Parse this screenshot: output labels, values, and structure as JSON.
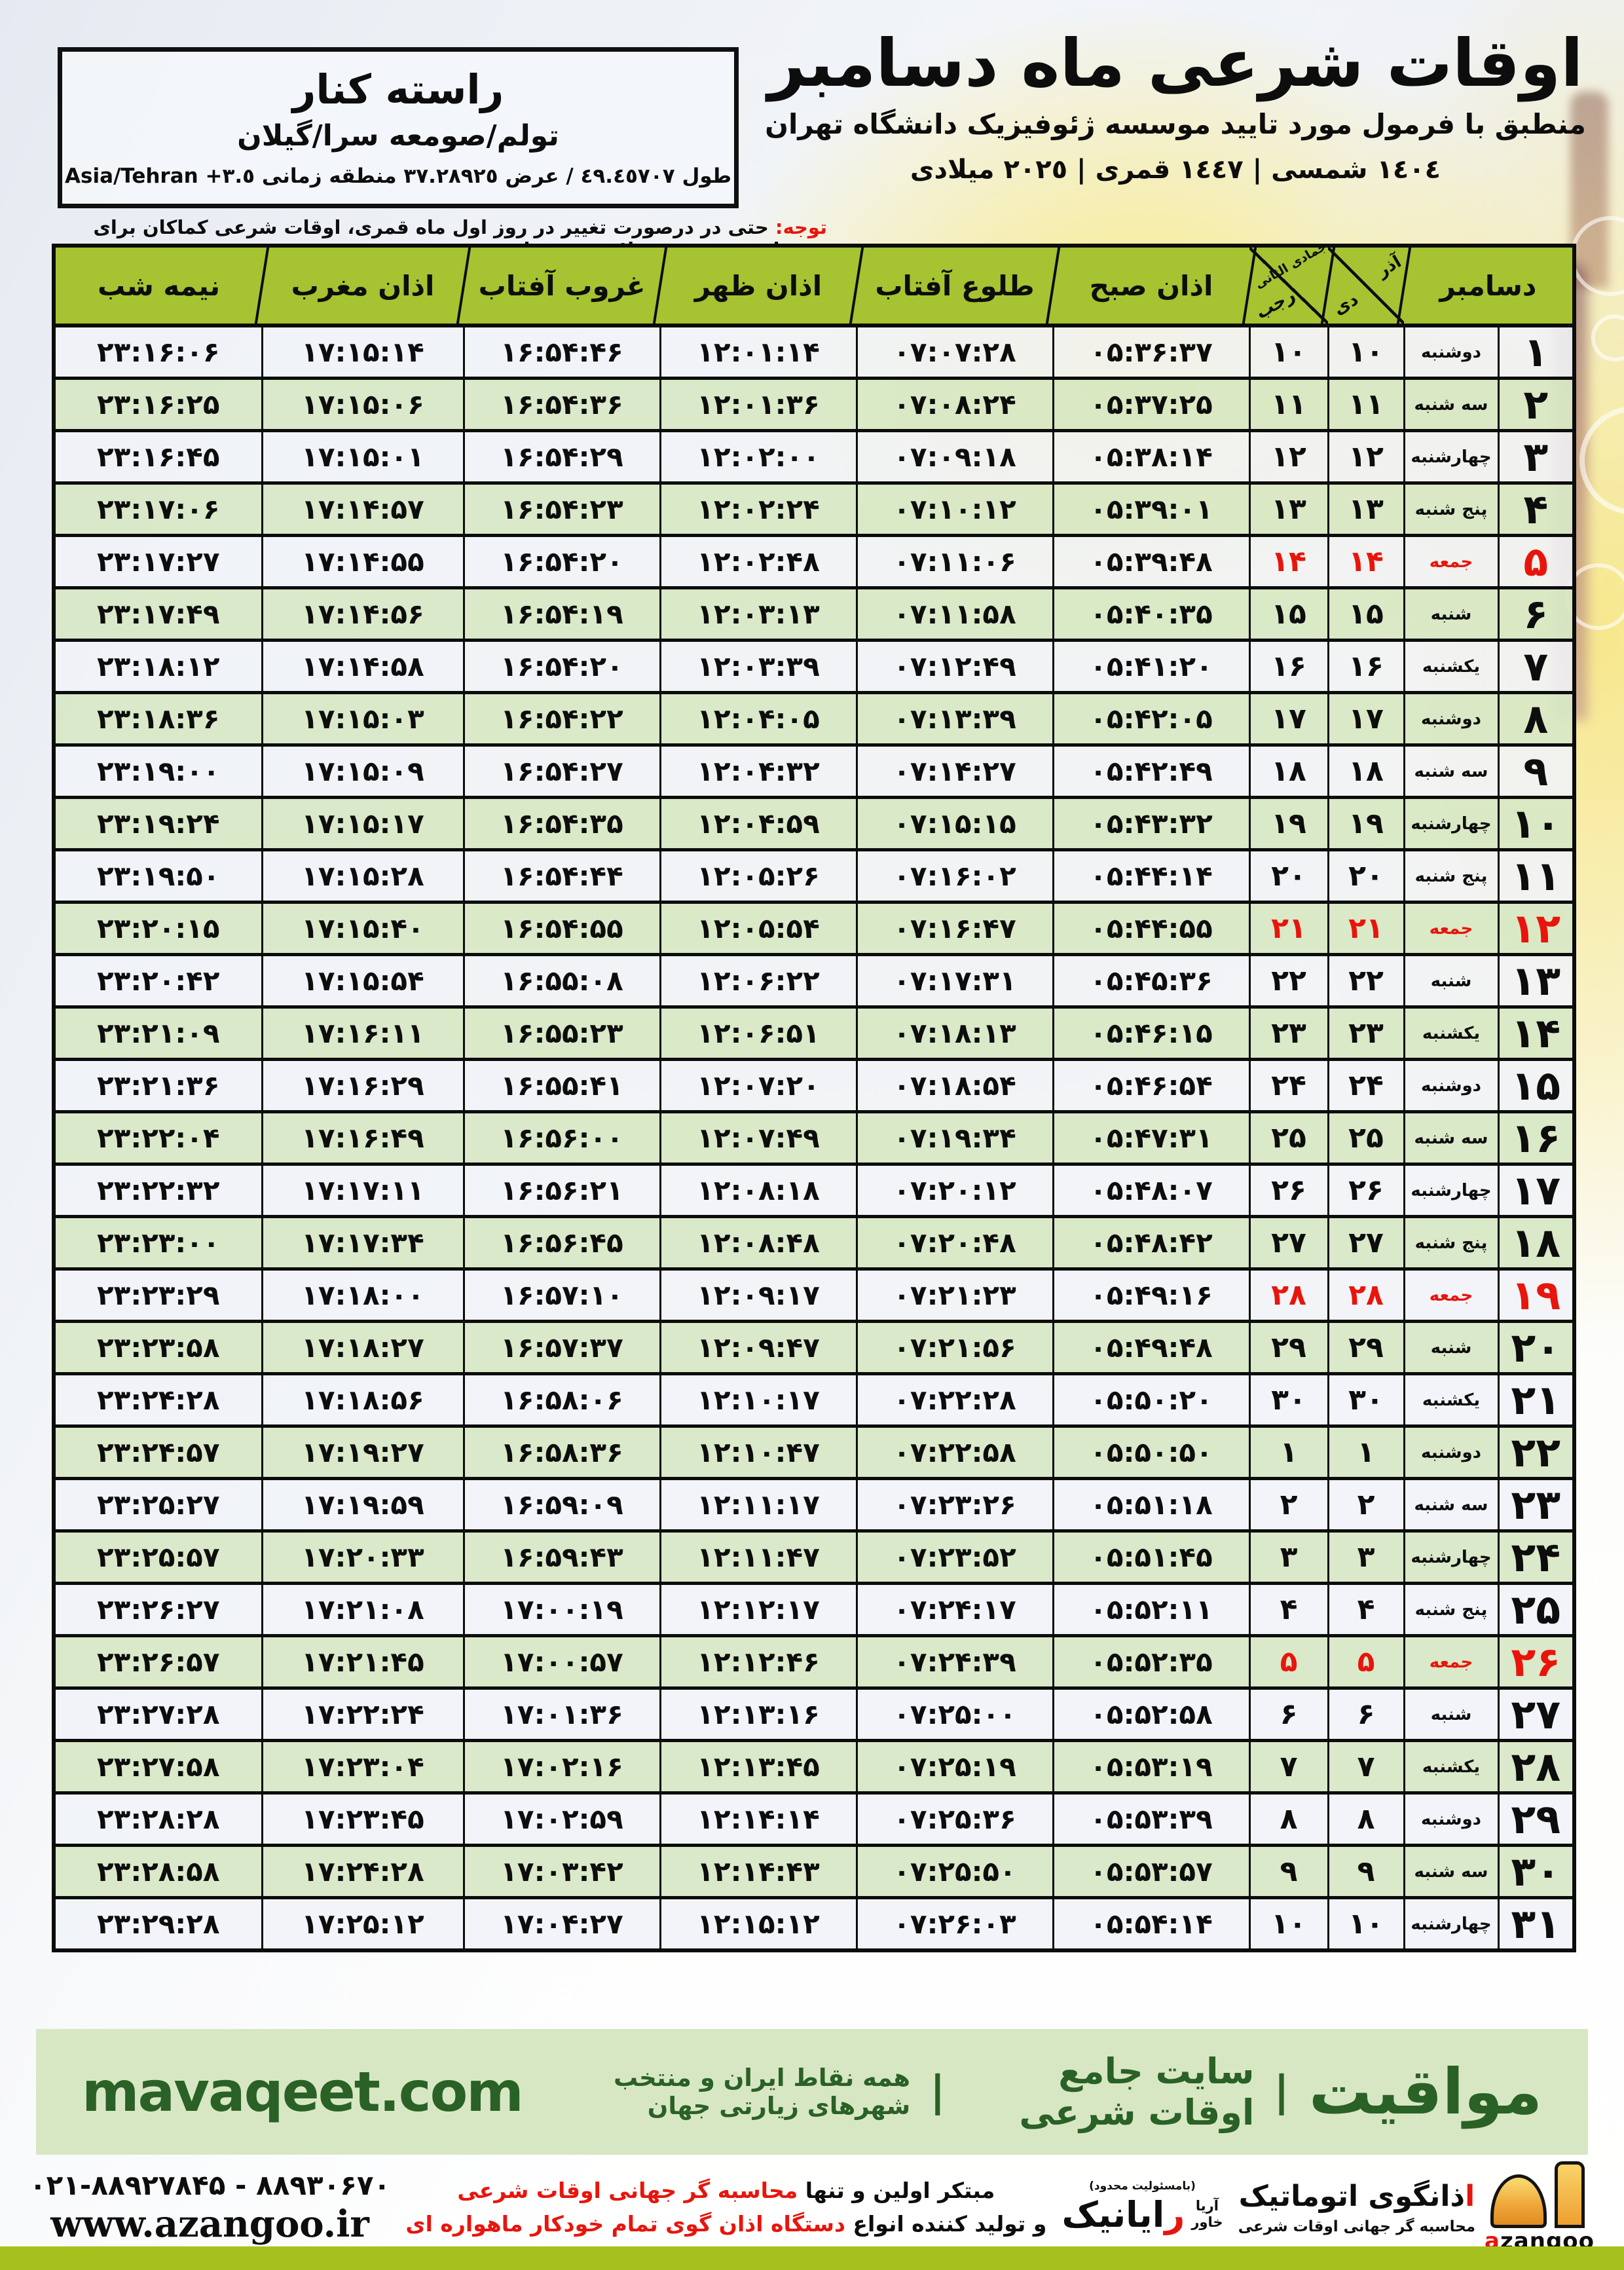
{
  "colors": {
    "header_green": "#a6c331",
    "row_green": "#d8e8c6",
    "row_white": "#f0f3f8",
    "dark_green": "#2a6126",
    "red": "#e8150c",
    "footer_band": "#d8e7c3",
    "bottom_bar": "#a6c01d"
  },
  "header": {
    "title": "اوقات شرعی ماه دسامبر",
    "subtitle": "منطبق با فرمول مورد تایید موسسه ژئوفیزیک دانشگاه تهران",
    "dates": "١٤٠٤ شمسی | ١٤٤٧ قمری | ٢٠٢٥ میلادی"
  },
  "location": {
    "name": "راسته کنار",
    "region": "تولم/صومعه سرا/گیلان",
    "coords": "طول ٤٩.٤٥٧٠٧ / عرض ٣٧.٢٨٩٢٥ منطقه زمانی",
    "timezone": "Asia/Tehran +٣.٥"
  },
  "notice": {
    "label": "توجه:",
    "text": "حتی در درصورت تغییر در روز اول ماه قمری، اوقات شرعی کماکان برای روزهای شمسی و میلادی معتبر است."
  },
  "table": {
    "month_header": "دسامبر",
    "persian_months": {
      "top": "آذر",
      "bottom": "دی"
    },
    "hijri_months": {
      "top": "جمادی الثانی",
      "bottom": "رجب"
    },
    "columns": {
      "fajr": "اذان صبح",
      "sunrise": "طلوع آفتاب",
      "dhuhr": "اذان ظهر",
      "sunset": "غروب آفتاب",
      "maghrib": "اذان مغرب",
      "midnight": "نیمه شب"
    },
    "rows": [
      {
        "day": "۱",
        "weekday": "دوشنبه",
        "persian_day": "۱۰",
        "hijri_day": "۱۰",
        "fajr": "۰۵:۳۶:۳۷",
        "sunrise": "۰۷:۰۷:۲۸",
        "dhuhr": "۱۲:۰۱:۱۴",
        "sunset": "۱۶:۵۴:۴۶",
        "maghrib": "۱۷:۱۵:۱۴",
        "midnight": "۲۳:۱۶:۰۶",
        "friday": false
      },
      {
        "day": "۲",
        "weekday": "سه شنبه",
        "persian_day": "۱۱",
        "hijri_day": "۱۱",
        "fajr": "۰۵:۳۷:۲۵",
        "sunrise": "۰۷:۰۸:۲۴",
        "dhuhr": "۱۲:۰۱:۳۶",
        "sunset": "۱۶:۵۴:۳۶",
        "maghrib": "۱۷:۱۵:۰۶",
        "midnight": "۲۳:۱۶:۲۵",
        "friday": false
      },
      {
        "day": "۳",
        "weekday": "چهارشنبه",
        "persian_day": "۱۲",
        "hijri_day": "۱۲",
        "fajr": "۰۵:۳۸:۱۴",
        "sunrise": "۰۷:۰۹:۱۸",
        "dhuhr": "۱۲:۰۲:۰۰",
        "sunset": "۱۶:۵۴:۲۹",
        "maghrib": "۱۷:۱۵:۰۱",
        "midnight": "۲۳:۱۶:۴۵",
        "friday": false
      },
      {
        "day": "۴",
        "weekday": "پنج شنبه",
        "persian_day": "۱۳",
        "hijri_day": "۱۳",
        "fajr": "۰۵:۳۹:۰۱",
        "sunrise": "۰۷:۱۰:۱۲",
        "dhuhr": "۱۲:۰۲:۲۴",
        "sunset": "۱۶:۵۴:۲۳",
        "maghrib": "۱۷:۱۴:۵۷",
        "midnight": "۲۳:۱۷:۰۶",
        "friday": false
      },
      {
        "day": "۵",
        "weekday": "جمعه",
        "persian_day": "۱۴",
        "hijri_day": "۱۴",
        "fajr": "۰۵:۳۹:۴۸",
        "sunrise": "۰۷:۱۱:۰۶",
        "dhuhr": "۱۲:۰۲:۴۸",
        "sunset": "۱۶:۵۴:۲۰",
        "maghrib": "۱۷:۱۴:۵۵",
        "midnight": "۲۳:۱۷:۲۷",
        "friday": true
      },
      {
        "day": "۶",
        "weekday": "شنبه",
        "persian_day": "۱۵",
        "hijri_day": "۱۵",
        "fajr": "۰۵:۴۰:۳۵",
        "sunrise": "۰۷:۱۱:۵۸",
        "dhuhr": "۱۲:۰۳:۱۳",
        "sunset": "۱۶:۵۴:۱۹",
        "maghrib": "۱۷:۱۴:۵۶",
        "midnight": "۲۳:۱۷:۴۹",
        "friday": false
      },
      {
        "day": "۷",
        "weekday": "یکشنبه",
        "persian_day": "۱۶",
        "hijri_day": "۱۶",
        "fajr": "۰۵:۴۱:۲۰",
        "sunrise": "۰۷:۱۲:۴۹",
        "dhuhr": "۱۲:۰۳:۳۹",
        "sunset": "۱۶:۵۴:۲۰",
        "maghrib": "۱۷:۱۴:۵۸",
        "midnight": "۲۳:۱۸:۱۲",
        "friday": false
      },
      {
        "day": "۸",
        "weekday": "دوشنبه",
        "persian_day": "۱۷",
        "hijri_day": "۱۷",
        "fajr": "۰۵:۴۲:۰۵",
        "sunrise": "۰۷:۱۳:۳۹",
        "dhuhr": "۱۲:۰۴:۰۵",
        "sunset": "۱۶:۵۴:۲۲",
        "maghrib": "۱۷:۱۵:۰۳",
        "midnight": "۲۳:۱۸:۳۶",
        "friday": false
      },
      {
        "day": "۹",
        "weekday": "سه شنبه",
        "persian_day": "۱۸",
        "hijri_day": "۱۸",
        "fajr": "۰۵:۴۲:۴۹",
        "sunrise": "۰۷:۱۴:۲۷",
        "dhuhr": "۱۲:۰۴:۳۲",
        "sunset": "۱۶:۵۴:۲۷",
        "maghrib": "۱۷:۱۵:۰۹",
        "midnight": "۲۳:۱۹:۰۰",
        "friday": false
      },
      {
        "day": "۱۰",
        "weekday": "چهارشنبه",
        "persian_day": "۱۹",
        "hijri_day": "۱۹",
        "fajr": "۰۵:۴۳:۳۲",
        "sunrise": "۰۷:۱۵:۱۵",
        "dhuhr": "۱۲:۰۴:۵۹",
        "sunset": "۱۶:۵۴:۳۵",
        "maghrib": "۱۷:۱۵:۱۷",
        "midnight": "۲۳:۱۹:۲۴",
        "friday": false
      },
      {
        "day": "۱۱",
        "weekday": "پنج شنبه",
        "persian_day": "۲۰",
        "hijri_day": "۲۰",
        "fajr": "۰۵:۴۴:۱۴",
        "sunrise": "۰۷:۱۶:۰۲",
        "dhuhr": "۱۲:۰۵:۲۶",
        "sunset": "۱۶:۵۴:۴۴",
        "maghrib": "۱۷:۱۵:۲۸",
        "midnight": "۲۳:۱۹:۵۰",
        "friday": false
      },
      {
        "day": "۱۲",
        "weekday": "جمعه",
        "persian_day": "۲۱",
        "hijri_day": "۲۱",
        "fajr": "۰۵:۴۴:۵۵",
        "sunrise": "۰۷:۱۶:۴۷",
        "dhuhr": "۱۲:۰۵:۵۴",
        "sunset": "۱۶:۵۴:۵۵",
        "maghrib": "۱۷:۱۵:۴۰",
        "midnight": "۲۳:۲۰:۱۵",
        "friday": true
      },
      {
        "day": "۱۳",
        "weekday": "شنبه",
        "persian_day": "۲۲",
        "hijri_day": "۲۲",
        "fajr": "۰۵:۴۵:۳۶",
        "sunrise": "۰۷:۱۷:۳۱",
        "dhuhr": "۱۲:۰۶:۲۲",
        "sunset": "۱۶:۵۵:۰۸",
        "maghrib": "۱۷:۱۵:۵۴",
        "midnight": "۲۳:۲۰:۴۲",
        "friday": false
      },
      {
        "day": "۱۴",
        "weekday": "یکشنبه",
        "persian_day": "۲۳",
        "hijri_day": "۲۳",
        "fajr": "۰۵:۴۶:۱۵",
        "sunrise": "۰۷:۱۸:۱۳",
        "dhuhr": "۱۲:۰۶:۵۱",
        "sunset": "۱۶:۵۵:۲۳",
        "maghrib": "۱۷:۱۶:۱۱",
        "midnight": "۲۳:۲۱:۰۹",
        "friday": false
      },
      {
        "day": "۱۵",
        "weekday": "دوشنبه",
        "persian_day": "۲۴",
        "hijri_day": "۲۴",
        "fajr": "۰۵:۴۶:۵۴",
        "sunrise": "۰۷:۱۸:۵۴",
        "dhuhr": "۱۲:۰۷:۲۰",
        "sunset": "۱۶:۵۵:۴۱",
        "maghrib": "۱۷:۱۶:۲۹",
        "midnight": "۲۳:۲۱:۳۶",
        "friday": false
      },
      {
        "day": "۱۶",
        "weekday": "سه شنبه",
        "persian_day": "۲۵",
        "hijri_day": "۲۵",
        "fajr": "۰۵:۴۷:۳۱",
        "sunrise": "۰۷:۱۹:۳۴",
        "dhuhr": "۱۲:۰۷:۴۹",
        "sunset": "۱۶:۵۶:۰۰",
        "maghrib": "۱۷:۱۶:۴۹",
        "midnight": "۲۳:۲۲:۰۴",
        "friday": false
      },
      {
        "day": "۱۷",
        "weekday": "چهارشنبه",
        "persian_day": "۲۶",
        "hijri_day": "۲۶",
        "fajr": "۰۵:۴۸:۰۷",
        "sunrise": "۰۷:۲۰:۱۲",
        "dhuhr": "۱۲:۰۸:۱۸",
        "sunset": "۱۶:۵۶:۲۱",
        "maghrib": "۱۷:۱۷:۱۱",
        "midnight": "۲۳:۲۲:۳۲",
        "friday": false
      },
      {
        "day": "۱۸",
        "weekday": "پنج شنبه",
        "persian_day": "۲۷",
        "hijri_day": "۲۷",
        "fajr": "۰۵:۴۸:۴۲",
        "sunrise": "۰۷:۲۰:۴۸",
        "dhuhr": "۱۲:۰۸:۴۸",
        "sunset": "۱۶:۵۶:۴۵",
        "maghrib": "۱۷:۱۷:۳۴",
        "midnight": "۲۳:۲۳:۰۰",
        "friday": false
      },
      {
        "day": "۱۹",
        "weekday": "جمعه",
        "persian_day": "۲۸",
        "hijri_day": "۲۸",
        "fajr": "۰۵:۴۹:۱۶",
        "sunrise": "۰۷:۲۱:۲۳",
        "dhuhr": "۱۲:۰۹:۱۷",
        "sunset": "۱۶:۵۷:۱۰",
        "maghrib": "۱۷:۱۸:۰۰",
        "midnight": "۲۳:۲۳:۲۹",
        "friday": true
      },
      {
        "day": "۲۰",
        "weekday": "شنبه",
        "persian_day": "۲۹",
        "hijri_day": "۲۹",
        "fajr": "۰۵:۴۹:۴۸",
        "sunrise": "۰۷:۲۱:۵۶",
        "dhuhr": "۱۲:۰۹:۴۷",
        "sunset": "۱۶:۵۷:۳۷",
        "maghrib": "۱۷:۱۸:۲۷",
        "midnight": "۲۳:۲۳:۵۸",
        "friday": false
      },
      {
        "day": "۲۱",
        "weekday": "یکشنبه",
        "persian_day": "۳۰",
        "hijri_day": "۳۰",
        "fajr": "۰۵:۵۰:۲۰",
        "sunrise": "۰۷:۲۲:۲۸",
        "dhuhr": "۱۲:۱۰:۱۷",
        "sunset": "۱۶:۵۸:۰۶",
        "maghrib": "۱۷:۱۸:۵۶",
        "midnight": "۲۳:۲۴:۲۸",
        "friday": false
      },
      {
        "day": "۲۲",
        "weekday": "دوشنبه",
        "persian_day": "۱",
        "hijri_day": "۱",
        "fajr": "۰۵:۵۰:۵۰",
        "sunrise": "۰۷:۲۲:۵۸",
        "dhuhr": "۱۲:۱۰:۴۷",
        "sunset": "۱۶:۵۸:۳۶",
        "maghrib": "۱۷:۱۹:۲۷",
        "midnight": "۲۳:۲۴:۵۷",
        "friday": false
      },
      {
        "day": "۲۳",
        "weekday": "سه شنبه",
        "persian_day": "۲",
        "hijri_day": "۲",
        "fajr": "۰۵:۵۱:۱۸",
        "sunrise": "۰۷:۲۳:۲۶",
        "dhuhr": "۱۲:۱۱:۱۷",
        "sunset": "۱۶:۵۹:۰۹",
        "maghrib": "۱۷:۱۹:۵۹",
        "midnight": "۲۳:۲۵:۲۷",
        "friday": false
      },
      {
        "day": "۲۴",
        "weekday": "چهارشنبه",
        "persian_day": "۳",
        "hijri_day": "۳",
        "fajr": "۰۵:۵۱:۴۵",
        "sunrise": "۰۷:۲۳:۵۲",
        "dhuhr": "۱۲:۱۱:۴۷",
        "sunset": "۱۶:۵۹:۴۳",
        "maghrib": "۱۷:۲۰:۳۳",
        "midnight": "۲۳:۲۵:۵۷",
        "friday": false
      },
      {
        "day": "۲۵",
        "weekday": "پنج شنبه",
        "persian_day": "۴",
        "hijri_day": "۴",
        "fajr": "۰۵:۵۲:۱۱",
        "sunrise": "۰۷:۲۴:۱۷",
        "dhuhr": "۱۲:۱۲:۱۷",
        "sunset": "۱۷:۰۰:۱۹",
        "maghrib": "۱۷:۲۱:۰۸",
        "midnight": "۲۳:۲۶:۲۷",
        "friday": false
      },
      {
        "day": "۲۶",
        "weekday": "جمعه",
        "persian_day": "۵",
        "hijri_day": "۵",
        "fajr": "۰۵:۵۲:۳۵",
        "sunrise": "۰۷:۲۴:۳۹",
        "dhuhr": "۱۲:۱۲:۴۶",
        "sunset": "۱۷:۰۰:۵۷",
        "maghrib": "۱۷:۲۱:۴۵",
        "midnight": "۲۳:۲۶:۵۷",
        "friday": true
      },
      {
        "day": "۲۷",
        "weekday": "شنبه",
        "persian_day": "۶",
        "hijri_day": "۶",
        "fajr": "۰۵:۵۲:۵۸",
        "sunrise": "۰۷:۲۵:۰۰",
        "dhuhr": "۱۲:۱۳:۱۶",
        "sunset": "۱۷:۰۱:۳۶",
        "maghrib": "۱۷:۲۲:۲۴",
        "midnight": "۲۳:۲۷:۲۸",
        "friday": false
      },
      {
        "day": "۲۸",
        "weekday": "یکشنبه",
        "persian_day": "۷",
        "hijri_day": "۷",
        "fajr": "۰۵:۵۳:۱۹",
        "sunrise": "۰۷:۲۵:۱۹",
        "dhuhr": "۱۲:۱۳:۴۵",
        "sunset": "۱۷:۰۲:۱۶",
        "maghrib": "۱۷:۲۳:۰۴",
        "midnight": "۲۳:۲۷:۵۸",
        "friday": false
      },
      {
        "day": "۲۹",
        "weekday": "دوشنبه",
        "persian_day": "۸",
        "hijri_day": "۸",
        "fajr": "۰۵:۵۳:۳۹",
        "sunrise": "۰۷:۲۵:۳۶",
        "dhuhr": "۱۲:۱۴:۱۴",
        "sunset": "۱۷:۰۲:۵۹",
        "maghrib": "۱۷:۲۳:۴۵",
        "midnight": "۲۳:۲۸:۲۸",
        "friday": false
      },
      {
        "day": "۳۰",
        "weekday": "سه شنبه",
        "persian_day": "۹",
        "hijri_day": "۹",
        "fajr": "۰۵:۵۳:۵۷",
        "sunrise": "۰۷:۲۵:۵۰",
        "dhuhr": "۱۲:۱۴:۴۳",
        "sunset": "۱۷:۰۳:۴۲",
        "maghrib": "۱۷:۲۴:۲۸",
        "midnight": "۲۳:۲۸:۵۸",
        "friday": false
      },
      {
        "day": "۳۱",
        "weekday": "چهارشنبه",
        "persian_day": "۱۰",
        "hijri_day": "۱۰",
        "fajr": "۰۵:۵۴:۱۴",
        "sunrise": "۰۷:۲۶:۰۳",
        "dhuhr": "۱۲:۱۵:۱۲",
        "sunset": "۱۷:۰۴:۲۷",
        "maghrib": "۱۷:۲۵:۱۲",
        "midnight": "۲۳:۲۹:۲۸",
        "friday": false
      }
    ]
  },
  "footer": {
    "brand": "مواقیت",
    "tagline1": "سایت جامع اوقات شرعی",
    "tagline2": "همه نقاط ایران و منتخب شهرهای زیارتی جهان",
    "website": "mavaqeet.com"
  },
  "azangoo": {
    "latin_a": "a",
    "latin_rest": "zangoo",
    "fa_first": "ا",
    "fa_rest": "ذانگوی اتوماتیک",
    "fa_sub": "محاسبه گر جهانی اوقات شرعی"
  },
  "rayanik": {
    "note": "(بامسئولیت محدود)",
    "first": "ر",
    "rest": "ایانیک",
    "aria": "آریا",
    "khavar": "خاور"
  },
  "slogan": {
    "line1_black": "مبتکر اولین و تنها",
    "line1_red": "محاسبه گر جهانی اوقات شرعی",
    "line2_black": "و تولید کننده انواع",
    "line2_red": "دستگاه اذان گوی تمام خودکار ماهواره ای"
  },
  "contact": {
    "phones": "۰۲۱-۸۸۹۲۷۸۴۵ - ۸۸۹۳۰۶۷۰",
    "website": "www.azangoo.ir"
  }
}
